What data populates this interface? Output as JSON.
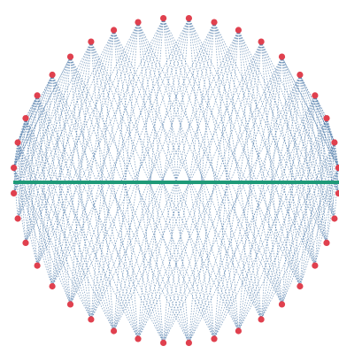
{
  "diagram": {
    "type": "circular string-art chord pattern",
    "point_count": 40,
    "point_color": "#e0404e",
    "chord_color": "#4a78a8",
    "diameter_color": "#1f9a78",
    "background": "#ffffff"
  }
}
